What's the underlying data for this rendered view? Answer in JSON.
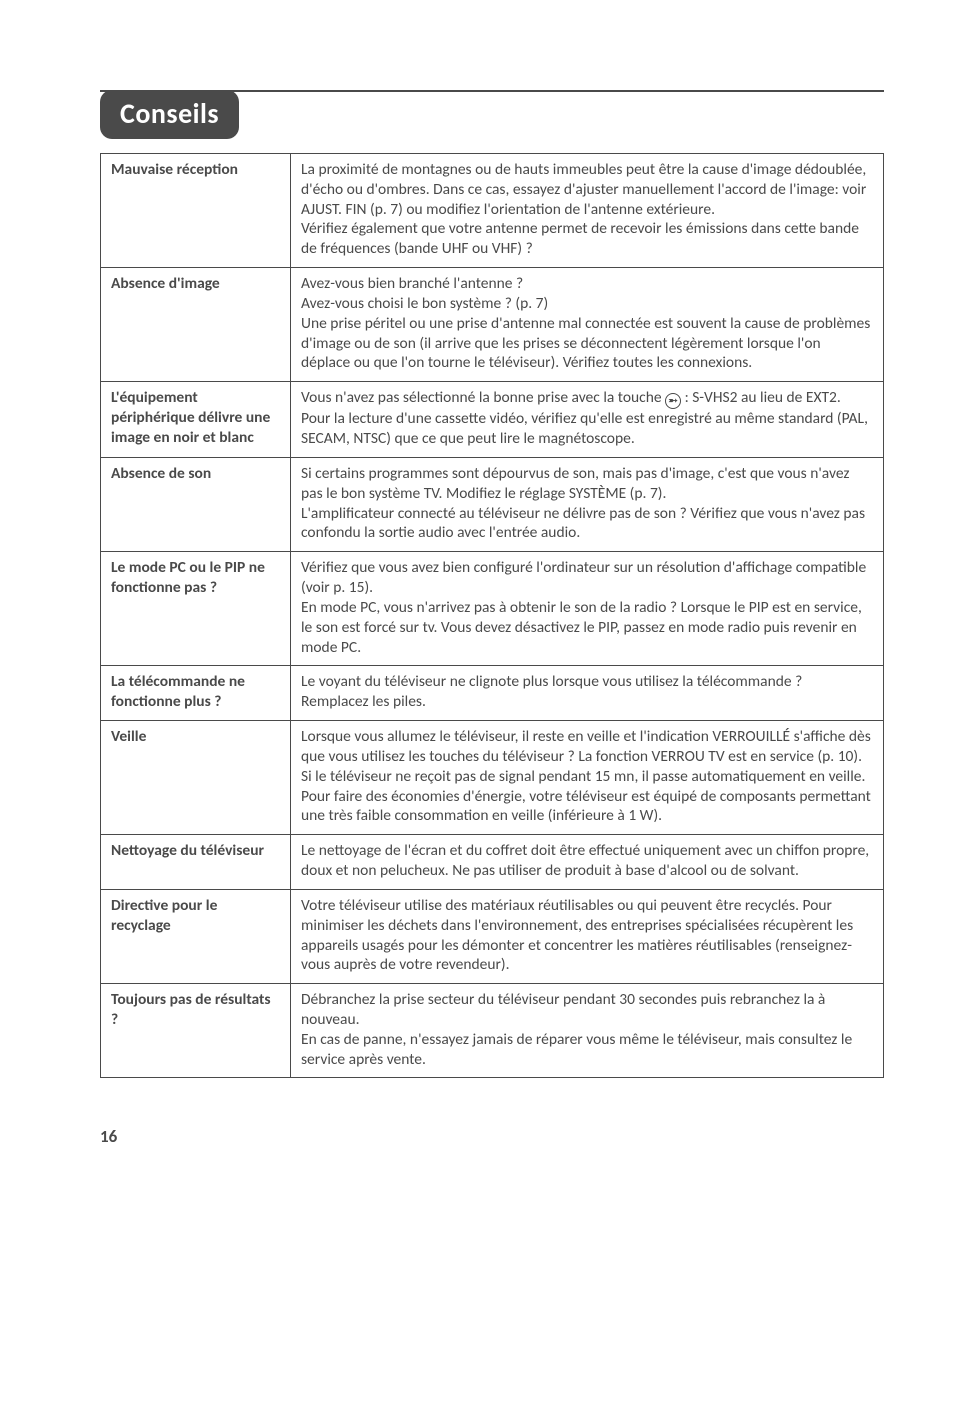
{
  "page": {
    "heading": "Conseils",
    "page_number": "16"
  },
  "colors": {
    "text": "#4a4a4a",
    "rule": "#4a4a4a",
    "pill_bg": "#4a4a4a",
    "pill_text": "#ffffff",
    "border": "#4a4a4a",
    "background": "#ffffff"
  },
  "rows": [
    {
      "label": "Mauvaise réception",
      "body": "La proximité de montagnes ou de hauts immeubles peut être la cause d'image dédoublée, d'écho ou d'ombres. Dans ce cas, essayez d'ajuster manuellement l'accord de l'image: voir AJUST. FIN (p. 7) ou modifiez l'orientation de l'antenne extérieure.\nVérifiez également que votre antenne permet de recevoir les émissions dans cette bande de fréquences (bande UHF ou VHF) ?"
    },
    {
      "label": "Absence d'image",
      "body": "Avez-vous bien branché l'antenne ?\nAvez-vous choisi le bon système ? (p. 7)\nUne prise péritel ou une prise d'antenne mal connectée est souvent la cause de problèmes d'image ou de son (il arrive que les prises se déconnectent légèrement lorsque l'on déplace ou que l'on tourne le téléviseur). Vérifiez toutes les connexions."
    },
    {
      "label": "L'équipement périphérique délivre une image en noir et blanc",
      "body_pre": "Vous n'avez pas sélectionné la bonne prise avec la touche ",
      "body_post": " : S-VHS2 au lieu de EXT2.\nPour la lecture d'une cassette vidéo, vérifiez qu'elle est enregistré au même standard (PAL, SECAM, NTSC) que ce que peut lire le magnétoscope.",
      "icon_glyph": "➵"
    },
    {
      "label": "Absence de son",
      "body": "Si certains programmes sont dépourvus de son, mais pas d'image, c'est que vous n'avez pas le bon système TV. Modifiez le réglage SYSTÈME (p. 7).\nL'amplificateur connecté au téléviseur ne délivre pas de son ? Vérifiez que vous n'avez pas confondu la sortie audio avec l'entrée audio."
    },
    {
      "label": "Le mode PC ou le PIP ne fonctionne pas ?",
      "body": "Vérifiez que vous avez bien configuré l'ordinateur sur un résolution d'affichage compatible (voir p. 15).\nEn mode PC, vous n'arrivez pas à obtenir le son de la radio ? Lorsque le PIP est en service, le son est forcé sur tv. Vous devez désactivez le PIP, passez en mode radio puis revenir en mode PC."
    },
    {
      "label": "La télécommande ne fonctionne plus ?",
      "body": "Le voyant du téléviseur ne clignote plus lorsque vous utilisez la télécommande ? Remplacez les piles."
    },
    {
      "label": "Veille",
      "body": "Lorsque vous allumez le téléviseur, il reste en veille et l'indication VERROUILLÉ s'affiche dès que vous utilisez les touches du téléviseur ? La fonction VERROU TV est en service (p. 10).\nSi le téléviseur ne reçoit pas de signal pendant 15 mn, il passe automatiquement en veille.\nPour faire des économies d'énergie, votre téléviseur est équipé de composants permettant une très faible consommation en veille (inférieure à 1 W)."
    },
    {
      "label": "Nettoyage du téléviseur",
      "body": "Le nettoyage de l'écran et du coffret doit être effectué uniquement avec un chiffon propre, doux et non pelucheux. Ne pas utiliser de produit à base d'alcool ou de solvant."
    },
    {
      "label": "Directive pour le recyclage",
      "body": "Votre téléviseur utilise des matériaux réutilisables ou qui peuvent être recyclés. Pour minimiser les déchets dans l'environnement, des entreprises spécialisées récupèrent les appareils usagés pour les démonter et concentrer les matières réutilisables (renseignez-vous auprès de votre revendeur)."
    },
    {
      "label": "Toujours pas de résultats ?",
      "body": "Débranchez la prise secteur du téléviseur pendant 30 secondes puis rebranchez la à nouveau.\nEn cas de panne, n'essayez jamais de réparer vous même le téléviseur, mais consultez le service après vente."
    }
  ]
}
